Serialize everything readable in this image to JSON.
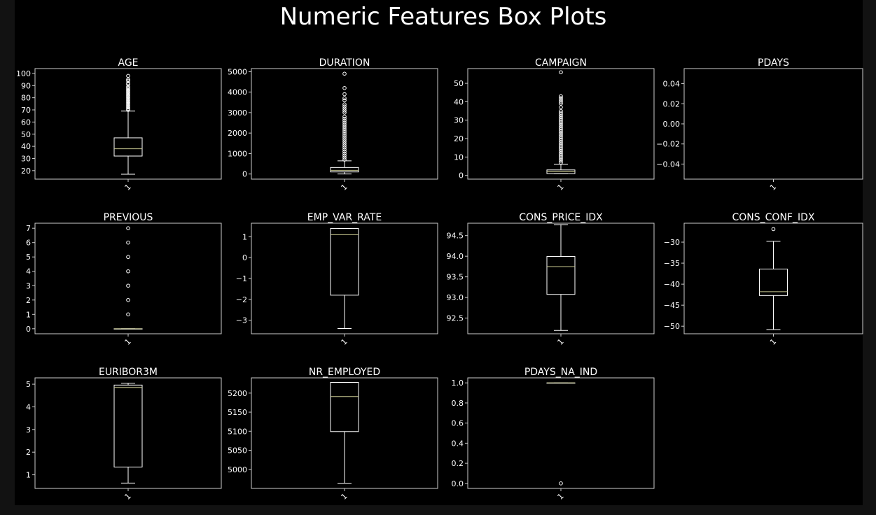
{
  "figure": {
    "title": "Numeric Features Box Plots",
    "colors": {
      "page_background": "#121212",
      "figure_background": "#000000",
      "axes_edge": "#cccccc",
      "box": "#ffffff",
      "median": "#c8c890",
      "text": "#ffffff"
    }
  },
  "chart_data": [
    {
      "type": "box",
      "title": "AGE",
      "categories": [
        "1"
      ],
      "ylim": [
        13,
        104
      ],
      "yticks": [
        20,
        30,
        40,
        50,
        60,
        70,
        80,
        90,
        100
      ],
      "ytick_labels": [
        "20",
        "30",
        "40",
        "50",
        "60",
        "70",
        "80",
        "90",
        "100"
      ],
      "stats": {
        "whislo": 17,
        "q1": 32,
        "median": 38,
        "q3": 47,
        "whishi": 69
      },
      "fliers": [
        70,
        71,
        72,
        73,
        74,
        75,
        76,
        77,
        78,
        79,
        80,
        81,
        82,
        83,
        84,
        85,
        86,
        87,
        88,
        89,
        91,
        92,
        94,
        95,
        98
      ]
    },
    {
      "type": "box",
      "title": "DURATION",
      "categories": [
        "1"
      ],
      "ylim": [
        -250,
        5150
      ],
      "yticks": [
        0,
        1000,
        2000,
        3000,
        4000,
        5000
      ],
      "ytick_labels": [
        "0",
        "1000",
        "2000",
        "3000",
        "4000",
        "5000"
      ],
      "stats": {
        "whislo": 0,
        "q1": 102,
        "median": 180,
        "q3": 319,
        "whishi": 644
      },
      "fliers": [
        700,
        800,
        900,
        1000,
        1100,
        1200,
        1300,
        1400,
        1500,
        1600,
        1700,
        1800,
        1900,
        2000,
        2100,
        2200,
        2300,
        2400,
        2500,
        2600,
        2700,
        2800,
        3000,
        3100,
        3200,
        3300,
        3400,
        3600,
        3700,
        3900,
        4200,
        4900
      ]
    },
    {
      "type": "box",
      "title": "CAMPAIGN",
      "categories": [
        "1"
      ],
      "ylim": [
        -2,
        58
      ],
      "yticks": [
        0,
        10,
        20,
        30,
        40,
        50
      ],
      "ytick_labels": [
        "0",
        "10",
        "20",
        "30",
        "40",
        "50"
      ],
      "stats": {
        "whislo": 1,
        "q1": 1,
        "median": 2,
        "q3": 3,
        "whishi": 6
      },
      "fliers": [
        7,
        8,
        9,
        10,
        11,
        12,
        13,
        14,
        15,
        16,
        17,
        18,
        19,
        20,
        21,
        22,
        23,
        24,
        25,
        26,
        27,
        28,
        29,
        30,
        31,
        32,
        33,
        34,
        35,
        37,
        39,
        40,
        41,
        42,
        43,
        56
      ]
    },
    {
      "type": "box",
      "title": "PDAYS",
      "categories": [
        "1"
      ],
      "ylim": [
        -0.055,
        0.055
      ],
      "yticks": [
        -0.04,
        -0.02,
        0,
        0.02,
        0.04
      ],
      "ytick_labels": [
        "−0.04",
        "−0.02",
        "0.00",
        "0.02",
        "0.04"
      ],
      "stats": null,
      "fliers": []
    },
    {
      "type": "box",
      "title": "PREVIOUS",
      "categories": [
        "1"
      ],
      "ylim": [
        -0.35,
        7.35
      ],
      "yticks": [
        0,
        1,
        2,
        3,
        4,
        5,
        6,
        7
      ],
      "ytick_labels": [
        "0",
        "1",
        "2",
        "3",
        "4",
        "5",
        "6",
        "7"
      ],
      "stats": {
        "whislo": 0,
        "q1": 0,
        "median": 0,
        "q3": 0,
        "whishi": 0
      },
      "fliers": [
        1,
        2,
        3,
        4,
        5,
        6,
        7
      ]
    },
    {
      "type": "box",
      "title": "EMP_VAR_RATE",
      "categories": [
        "1"
      ],
      "ylim": [
        -3.65,
        1.65
      ],
      "yticks": [
        -3,
        -2,
        -1,
        0,
        1
      ],
      "ytick_labels": [
        "−3",
        "−2",
        "−1",
        "0",
        "1"
      ],
      "stats": {
        "whislo": -3.4,
        "q1": -1.8,
        "median": 1.1,
        "q3": 1.4,
        "whishi": 1.4
      },
      "fliers": []
    },
    {
      "type": "box",
      "title": "CONS_PRICE_IDX",
      "categories": [
        "1"
      ],
      "ylim": [
        92.12,
        94.8
      ],
      "yticks": [
        92.5,
        93.0,
        93.5,
        94.0,
        94.5
      ],
      "ytick_labels": [
        "92.5",
        "93.0",
        "93.5",
        "94.0",
        "94.5"
      ],
      "stats": {
        "whislo": 92.2,
        "q1": 93.075,
        "median": 93.749,
        "q3": 93.994,
        "whishi": 94.767
      },
      "fliers": []
    },
    {
      "type": "box",
      "title": "CONS_CONF_IDX",
      "categories": [
        "1"
      ],
      "ylim": [
        -51.8,
        -25.5
      ],
      "yticks": [
        -50,
        -45,
        -40,
        -35,
        -30
      ],
      "ytick_labels": [
        "−50",
        "−45",
        "−40",
        "−35",
        "−30"
      ],
      "stats": {
        "whislo": -50.8,
        "q1": -42.7,
        "median": -41.8,
        "q3": -36.4,
        "whishi": -29.8
      },
      "fliers": [
        -26.9
      ]
    },
    {
      "type": "box",
      "title": "EURIBOR3M",
      "categories": [
        "1"
      ],
      "ylim": [
        0.4,
        5.28
      ],
      "yticks": [
        1,
        2,
        3,
        4,
        5
      ],
      "ytick_labels": [
        "1",
        "2",
        "3",
        "4",
        "5"
      ],
      "stats": {
        "whislo": 0.634,
        "q1": 1.344,
        "median": 4.857,
        "q3": 4.961,
        "whishi": 5.045
      },
      "fliers": []
    },
    {
      "type": "box",
      "title": "NR_EMPLOYED",
      "categories": [
        "1"
      ],
      "ylim": [
        4950,
        5240
      ],
      "yticks": [
        5000,
        5050,
        5100,
        5150,
        5200
      ],
      "ytick_labels": [
        "5000",
        "5050",
        "5100",
        "5150",
        "5200"
      ],
      "stats": {
        "whislo": 4963.6,
        "q1": 5099.1,
        "median": 5191,
        "q3": 5228.1,
        "whishi": 5228.1
      },
      "fliers": []
    },
    {
      "type": "box",
      "title": "PDAYS_NA_IND",
      "categories": [
        "1"
      ],
      "ylim": [
        -0.05,
        1.05
      ],
      "yticks": [
        0,
        0.2,
        0.4,
        0.6,
        0.8,
        1.0
      ],
      "ytick_labels": [
        "0.0",
        "0.2",
        "0.4",
        "0.6",
        "0.8",
        "1.0"
      ],
      "stats": {
        "whislo": 1,
        "q1": 1,
        "median": 1,
        "q3": 1,
        "whishi": 1
      },
      "fliers": [
        0
      ]
    }
  ]
}
